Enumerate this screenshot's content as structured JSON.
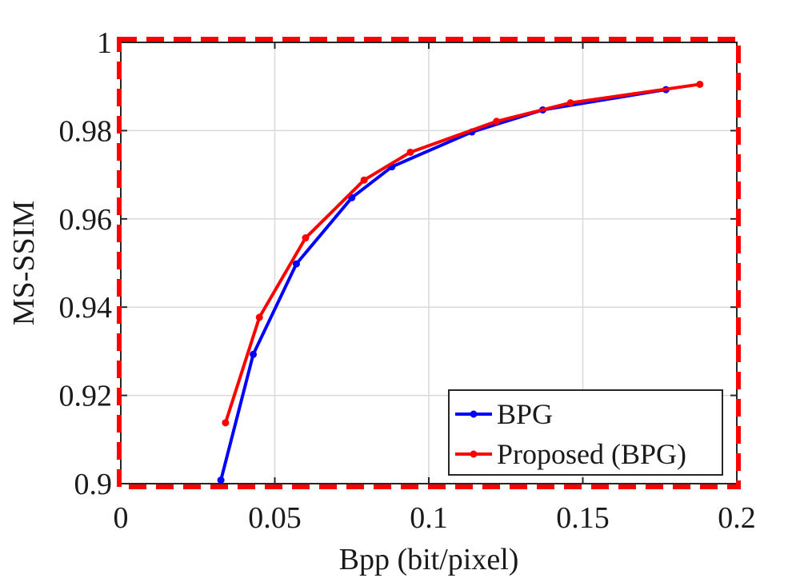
{
  "chart_data": {
    "type": "line",
    "xlabel": "Bpp (bit/pixel)",
    "ylabel": "MS-SSIM",
    "xlim": [
      0,
      0.2
    ],
    "ylim": [
      0.9,
      1.0
    ],
    "xticks": [
      0,
      0.05,
      0.1,
      0.15,
      0.2
    ],
    "xtick_labels": [
      "0",
      "0.05",
      "0.1",
      "0.15",
      "0.2"
    ],
    "yticks": [
      0.9,
      0.92,
      0.94,
      0.96,
      0.98,
      1.0
    ],
    "ytick_labels": [
      "0.9",
      "0.92",
      "0.94",
      "0.96",
      "0.98",
      "1"
    ],
    "grid": true,
    "legend_position": "bottom-right",
    "series": [
      {
        "name": "BPG",
        "color": "#0000ff",
        "x": [
          0.0325,
          0.043,
          0.057,
          0.075,
          0.088,
          0.114,
          0.137,
          0.177
        ],
        "y": [
          0.9008,
          0.9293,
          0.9498,
          0.9648,
          0.9718,
          0.9797,
          0.9847,
          0.9893
        ]
      },
      {
        "name": "Proposed (BPG)",
        "color": "#ff0000",
        "x": [
          0.034,
          0.045,
          0.06,
          0.079,
          0.094,
          0.122,
          0.146,
          0.188
        ],
        "y": [
          0.9138,
          0.9377,
          0.9557,
          0.9688,
          0.9751,
          0.9821,
          0.9863,
          0.9905
        ]
      }
    ],
    "highlight_box_color": "#ff0000"
  }
}
